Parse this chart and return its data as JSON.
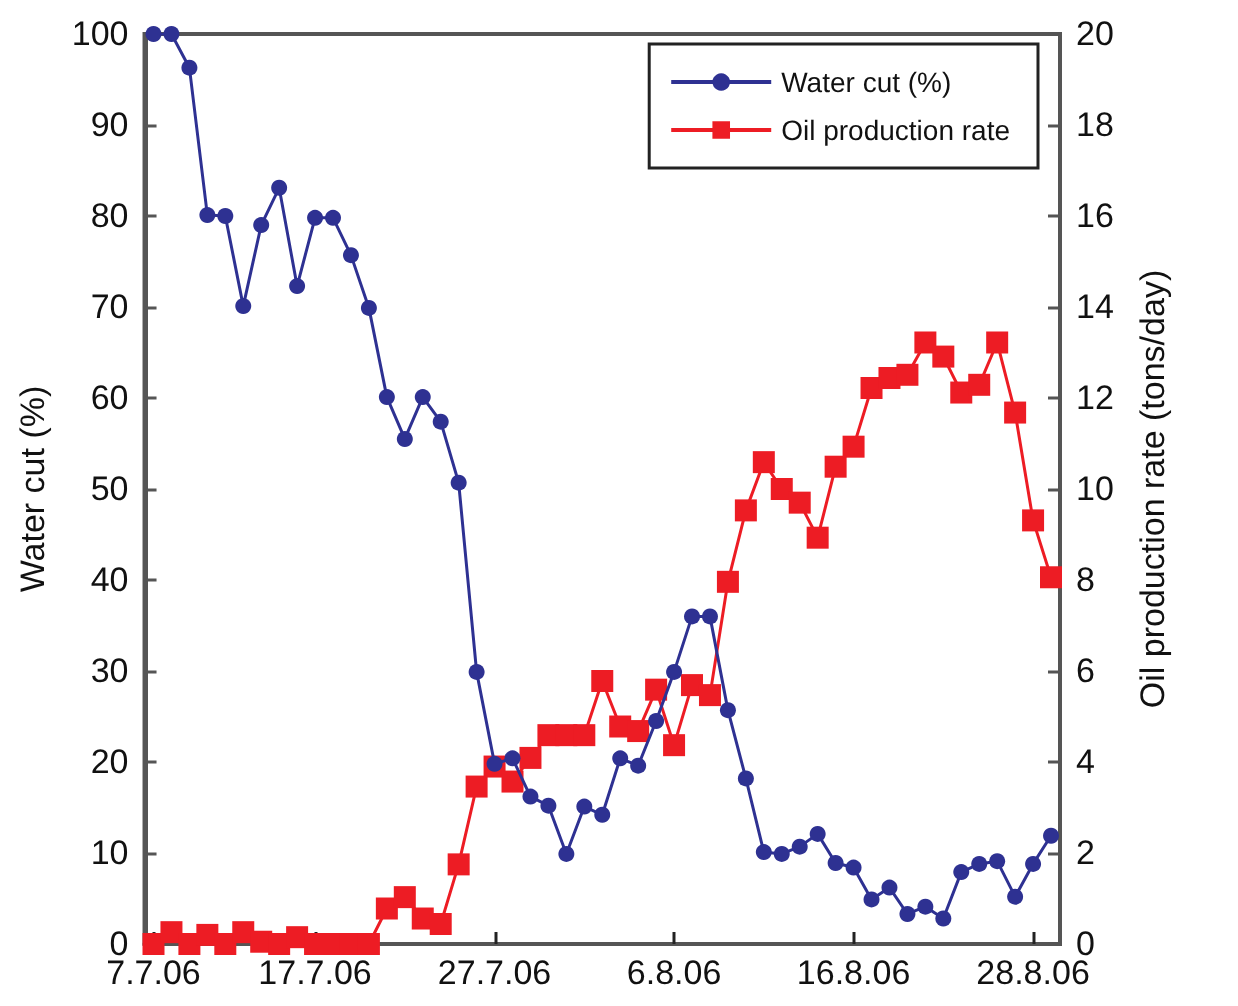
{
  "chart_data": {
    "type": "line",
    "xlabel": null,
    "ylabel": "Water cut (%)",
    "y2label": "Oil production rate (tons/day)",
    "categories": [
      "7.7.06",
      null,
      null,
      null,
      null,
      null,
      null,
      null,
      null,
      "17.7.06",
      null,
      null,
      null,
      null,
      null,
      null,
      null,
      null,
      null,
      "27.7.06",
      null,
      null,
      null,
      null,
      null,
      null,
      null,
      null,
      null,
      "6.8.06",
      null,
      null,
      null,
      null,
      null,
      null,
      null,
      null,
      null,
      "16.8.06",
      null,
      null,
      null,
      null,
      null,
      null,
      null,
      null,
      null,
      "28.8.06",
      null
    ],
    "series": [
      {
        "name": "Water cut (%)",
        "color": "#2e3192",
        "marker": "circle",
        "values": [
          100,
          100,
          96.3,
          80.1,
          80,
          70.1,
          79,
          83.1,
          72.3,
          79.8,
          79.8,
          75.7,
          69.9,
          60.1,
          55.5,
          60.1,
          57.4,
          50.7,
          29.9,
          19.8,
          20.4,
          16.2,
          15.2,
          9.9,
          15.1,
          14.2,
          20.4,
          19.6,
          24.5,
          29.9,
          36,
          36,
          25.7,
          18.2,
          10.1,
          9.9,
          10.7,
          12.1,
          8.9,
          8.4,
          4.9,
          6.2,
          3.3,
          4.1,
          2.8,
          7.9,
          8.8,
          9.1,
          5.2,
          8.8,
          11.9
        ]
      },
      {
        "name": "Oil production rate",
        "color": "#ed1c24",
        "marker": "square",
        "axis": "y2",
        "values": [
          0,
          0.26,
          0,
          0.2,
          0,
          0.26,
          0.05,
          0,
          0.15,
          0,
          0,
          0,
          0,
          0.78,
          1.03,
          0.56,
          0.44,
          1.75,
          3.46,
          3.9,
          3.57,
          4.09,
          4.59,
          4.59,
          4.59,
          5.78,
          4.78,
          4.68,
          5.59,
          4.37,
          5.69,
          5.47,
          7.96,
          9.53,
          10.59,
          10,
          9.7,
          8.93,
          10.49,
          10.93,
          12.22,
          12.44,
          12.51,
          13.22,
          12.91,
          12.12,
          12.29,
          13.22,
          11.68,
          9.31,
          8.06
        ]
      }
    ],
    "ylim": [
      0,
      100
    ],
    "yticks": [
      0,
      10,
      20,
      30,
      40,
      50,
      60,
      70,
      80,
      90,
      100
    ],
    "y2lim": [
      0,
      20
    ],
    "y2ticks": [
      0,
      2,
      4,
      6,
      8,
      10,
      12,
      14,
      16,
      18,
      20
    ],
    "grid": false,
    "legend": "top right"
  }
}
